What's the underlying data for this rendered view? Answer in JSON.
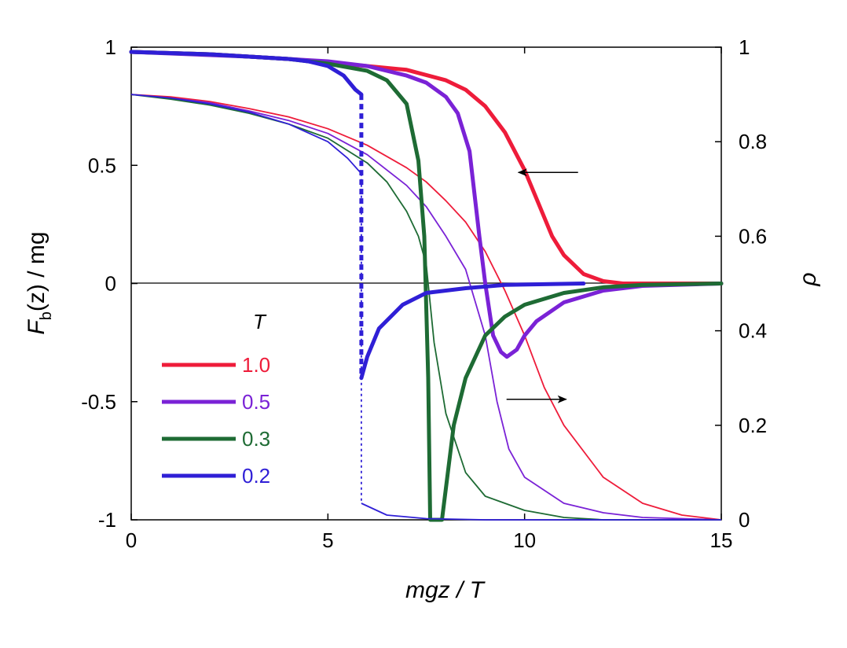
{
  "chart_data": {
    "type": "line",
    "xlabel": "mgz / T",
    "ylabel_left": {
      "base": "F",
      "sub": "b",
      "rest": "(z) / mg"
    },
    "ylabel_right": "ρ",
    "xlim": [
      0,
      15
    ],
    "ylim_left": [
      -1,
      1
    ],
    "ylim_right": [
      0,
      1
    ],
    "x_ticks": [
      0,
      5,
      10,
      15
    ],
    "x_tick_labels": [
      "0",
      "5",
      "10",
      "15"
    ],
    "y_left_ticks": [
      1,
      0.5,
      0,
      -0.5,
      -1
    ],
    "y_left_tick_labels": [
      "1",
      "0.5",
      "0",
      "-0.5",
      "-1"
    ],
    "y_right_ticks": [
      1,
      0.8,
      0.6,
      0.4,
      0.2,
      0
    ],
    "y_right_tick_labels": [
      "1",
      "0.8",
      "0.6",
      "0.4",
      "0.2",
      "0"
    ],
    "legend_title": "T",
    "legend_placement": "left",
    "colors": {
      "1.0": "#ee1c3a",
      "0.5": "#7a22d6",
      "0.3": "#1e6b34",
      "0.2": "#2f1fd6"
    },
    "series": [
      {
        "name": "1.0",
        "color": "#ee1c3a",
        "rho": [
          [
            0,
            0.99
          ],
          [
            2,
            0.985
          ],
          [
            4,
            0.975
          ],
          [
            6,
            0.96
          ],
          [
            7,
            0.952
          ],
          [
            8,
            0.93
          ],
          [
            8.5,
            0.91
          ],
          [
            9,
            0.875
          ],
          [
            9.5,
            0.82
          ],
          [
            10,
            0.74
          ],
          [
            10.3,
            0.68
          ],
          [
            10.7,
            0.6
          ],
          [
            11,
            0.56
          ],
          [
            11.5,
            0.52
          ],
          [
            12,
            0.505
          ],
          [
            12.5,
            0.5
          ],
          [
            13,
            0.5
          ],
          [
            15,
            0.5
          ]
        ],
        "force": [
          [
            0,
            0.8
          ],
          [
            1,
            0.79
          ],
          [
            2,
            0.77
          ],
          [
            3,
            0.74
          ],
          [
            4,
            0.705
          ],
          [
            5,
            0.655
          ],
          [
            6,
            0.585
          ],
          [
            7,
            0.49
          ],
          [
            7.5,
            0.43
          ],
          [
            8,
            0.35
          ],
          [
            8.5,
            0.26
          ],
          [
            9,
            0.135
          ],
          [
            9.5,
            -0.03
          ],
          [
            10,
            -0.22
          ],
          [
            10.5,
            -0.44
          ],
          [
            11,
            -0.6
          ],
          [
            12,
            -0.82
          ],
          [
            13,
            -0.93
          ],
          [
            14,
            -0.98
          ],
          [
            15,
            -1.0
          ]
        ]
      },
      {
        "name": "0.5",
        "color": "#7a22d6",
        "rho": [
          [
            0,
            0.99
          ],
          [
            3,
            0.98
          ],
          [
            5,
            0.97
          ],
          [
            6,
            0.96
          ],
          [
            7,
            0.94
          ],
          [
            7.5,
            0.925
          ],
          [
            8,
            0.895
          ],
          [
            8.3,
            0.86
          ],
          [
            8.6,
            0.78
          ],
          [
            8.85,
            0.6
          ],
          [
            9,
            0.5
          ],
          [
            9.2,
            0.39
          ],
          [
            9.4,
            0.355
          ],
          [
            9.55,
            0.345
          ],
          [
            9.8,
            0.36
          ],
          [
            10,
            0.39
          ],
          [
            10.3,
            0.42
          ],
          [
            11,
            0.46
          ],
          [
            12,
            0.485
          ],
          [
            13,
            0.495
          ],
          [
            15,
            0.5
          ]
        ],
        "force": [
          [
            0,
            0.8
          ],
          [
            1,
            0.785
          ],
          [
            2,
            0.765
          ],
          [
            3,
            0.73
          ],
          [
            4,
            0.69
          ],
          [
            5,
            0.635
          ],
          [
            6,
            0.545
          ],
          [
            7,
            0.415
          ],
          [
            7.5,
            0.325
          ],
          [
            8,
            0.2
          ],
          [
            8.5,
            0.06
          ],
          [
            9,
            -0.22
          ],
          [
            9.3,
            -0.5
          ],
          [
            9.6,
            -0.7
          ],
          [
            10,
            -0.82
          ],
          [
            11,
            -0.93
          ],
          [
            12,
            -0.97
          ],
          [
            13,
            -0.99
          ],
          [
            15,
            -1.0
          ]
        ]
      },
      {
        "name": "0.3",
        "color": "#1e6b34",
        "rho": [
          [
            0,
            0.99
          ],
          [
            2,
            0.985
          ],
          [
            4,
            0.975
          ],
          [
            5,
            0.965
          ],
          [
            6,
            0.95
          ],
          [
            6.5,
            0.93
          ],
          [
            7,
            0.88
          ],
          [
            7.3,
            0.76
          ],
          [
            7.45,
            0.6
          ],
          [
            7.55,
            0.3
          ],
          [
            7.6,
            0.0
          ],
          [
            7.9,
            0.0
          ],
          [
            8.2,
            0.2
          ],
          [
            8.5,
            0.3
          ],
          [
            9,
            0.39
          ],
          [
            9.5,
            0.43
          ],
          [
            10,
            0.455
          ],
          [
            11,
            0.48
          ],
          [
            12,
            0.492
          ],
          [
            13,
            0.497
          ],
          [
            15,
            0.5
          ]
        ],
        "force": [
          [
            0,
            0.8
          ],
          [
            1,
            0.78
          ],
          [
            2,
            0.755
          ],
          [
            3,
            0.72
          ],
          [
            4,
            0.675
          ],
          [
            5,
            0.615
          ],
          [
            6,
            0.51
          ],
          [
            6.5,
            0.43
          ],
          [
            7,
            0.305
          ],
          [
            7.3,
            0.2
          ],
          [
            7.5,
            0.08
          ],
          [
            7.7,
            -0.25
          ],
          [
            8,
            -0.55
          ],
          [
            8.5,
            -0.8
          ],
          [
            9,
            -0.9
          ],
          [
            10,
            -0.96
          ],
          [
            11,
            -0.99
          ],
          [
            12,
            -1.0
          ],
          [
            15,
            -1.0
          ]
        ]
      },
      {
        "name": "0.2",
        "color": "#2f1fd6",
        "rho": [
          [
            0,
            0.99
          ],
          [
            2,
            0.985
          ],
          [
            3,
            0.98
          ],
          [
            4,
            0.975
          ],
          [
            4.5,
            0.97
          ],
          [
            5,
            0.96
          ],
          [
            5.4,
            0.94
          ],
          [
            5.7,
            0.91
          ],
          [
            5.85,
            0.9
          ],
          null,
          [
            5.85,
            0.3
          ],
          [
            6.0,
            0.345
          ],
          [
            6.3,
            0.405
          ],
          [
            6.9,
            0.455
          ],
          [
            7.5,
            0.48
          ],
          [
            8.5,
            0.49
          ],
          [
            9.5,
            0.497
          ],
          [
            11.5,
            0.5
          ]
        ],
        "force": [
          [
            0,
            0.8
          ],
          [
            1,
            0.785
          ],
          [
            2,
            0.76
          ],
          [
            3,
            0.725
          ],
          [
            4,
            0.675
          ],
          [
            5,
            0.6
          ],
          [
            5.5,
            0.53
          ],
          [
            5.85,
            0.465
          ],
          null,
          [
            5.85,
            -0.93
          ],
          [
            6.5,
            -0.98
          ],
          [
            7.5,
            -0.995
          ],
          [
            9,
            -1.0
          ],
          [
            15,
            -1.0
          ]
        ],
        "transition_line": {
          "x": 5.85,
          "rho_from": 0.9,
          "rho_to": 0.3,
          "force_from": 0.465,
          "force_to": -0.93
        }
      }
    ],
    "annotations": [
      {
        "kind": "arrow",
        "direction": "left",
        "meaning": "left-axis curves",
        "at_x": 10.6,
        "at_rho": 0.735
      },
      {
        "kind": "arrow",
        "direction": "right",
        "meaning": "right-axis curves",
        "at_x": 10.3,
        "at_rho": 0.255
      }
    ]
  }
}
